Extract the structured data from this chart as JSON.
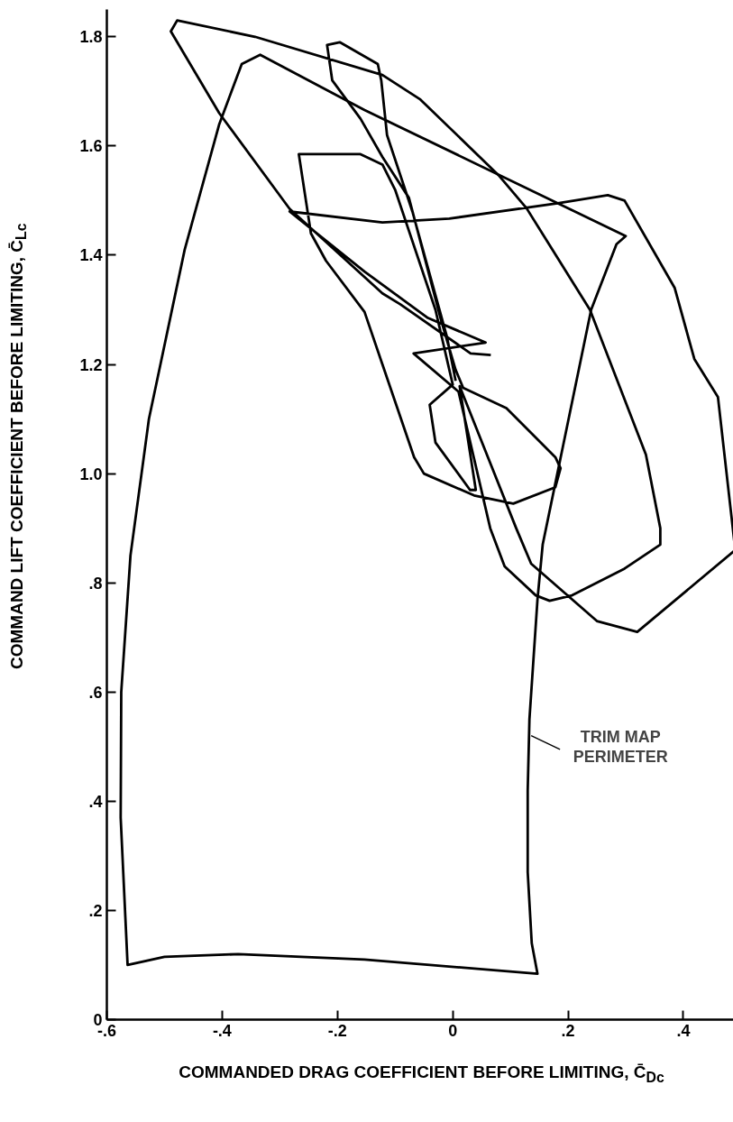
{
  "chart_data": {
    "type": "line",
    "xlabel": "COMMANDED DRAG COEFFICIENT BEFORE LIMITING, C̄$_{Dc}$",
    "ylabel": "COMMAND LIFT COEFFICIENT BEFORE LIMITING, C̄$_{Lc}$",
    "xlim": [
      -0.6,
      0.49
    ],
    "ylim": [
      0,
      1.85
    ],
    "xticks": [
      {
        "value": -0.6,
        "label": "-.6"
      },
      {
        "value": -0.4,
        "label": "-.4"
      },
      {
        "value": -0.2,
        "label": "-.2"
      },
      0,
      {
        "value": 0.2,
        "label": ".2"
      },
      {
        "value": 0.4,
        "label": ".4"
      }
    ],
    "yticks": [
      0,
      {
        "value": 0.2,
        "label": ".2"
      },
      {
        "value": 0.4,
        "label": ".4"
      },
      {
        "value": 0.6,
        "label": ".6"
      },
      {
        "value": 0.8,
        "label": ".8"
      },
      {
        "value": 1.0,
        "label": "1.0"
      },
      {
        "value": 1.2,
        "label": "1.2"
      },
      {
        "value": 1.4,
        "label": "1.4"
      },
      {
        "value": 1.6,
        "label": "1.6"
      },
      {
        "value": 1.8,
        "label": "1.8"
      }
    ],
    "marker": "none",
    "line_style": "solid",
    "annotations": [
      {
        "text": "TRIM MAP PERIMETER",
        "x": 0.136,
        "y": 0.52
      }
    ],
    "series": [
      {
        "color": "#000000",
        "x": [
          0.005,
          -0.01,
          -0.07,
          -0.114,
          -0.124,
          -0.13,
          -0.196,
          -0.218,
          -0.209,
          -0.16,
          -0.122,
          -0.076,
          -0.02,
          0.005,
          0.018,
          0.093,
          0.178,
          0.187,
          0.178,
          0.105,
          0.037,
          -0.05,
          -0.067,
          -0.122,
          -0.153,
          -0.22,
          -0.246,
          -0.267,
          -0.16,
          -0.122,
          -0.1,
          -0.03,
          0.0,
          -0.04,
          -0.03,
          0.03,
          0.04,
          0.012,
          0.11,
          0.136,
          0.25,
          0.32,
          0.49,
          0.46,
          0.419,
          0.385,
          0.298,
          0.269,
          0.182,
          -0.006,
          -0.122,
          -0.283,
          -0.153,
          -0.043,
          0.057,
          -0.068,
          0.01,
          0.065,
          0.09,
          0.144,
          0.168,
          0.207,
          0.298,
          0.36,
          0.36,
          0.335,
          0.238,
          0.128,
          0.079,
          -0.056,
          -0.122,
          -0.343,
          -0.478,
          -0.489,
          -0.405,
          -0.283,
          -0.122,
          -0.091,
          0.031,
          0.066
        ],
        "values": [
          1.17,
          1.25,
          1.48,
          1.62,
          1.72,
          1.75,
          1.79,
          1.785,
          1.72,
          1.65,
          1.58,
          1.505,
          1.28,
          1.19,
          1.157,
          1.12,
          1.03,
          1.01,
          0.975,
          0.945,
          0.96,
          1.0,
          1.03,
          1.2,
          1.296,
          1.39,
          1.44,
          1.585,
          1.585,
          1.566,
          1.52,
          1.3,
          1.163,
          1.126,
          1.057,
          0.97,
          0.97,
          1.16,
          0.9,
          0.835,
          0.73,
          0.71,
          0.86,
          1.14,
          1.21,
          1.34,
          1.5,
          1.51,
          1.495,
          1.467,
          1.46,
          1.48,
          1.37,
          1.285,
          1.24,
          1.22,
          1.15,
          0.9,
          0.83,
          0.777,
          0.767,
          0.777,
          0.826,
          0.87,
          0.9,
          1.035,
          1.3,
          1.486,
          1.547,
          1.685,
          1.73,
          1.8,
          1.83,
          1.81,
          1.66,
          1.485,
          1.33,
          1.31,
          1.22,
          1.217
        ]
      },
      {
        "color": "#000000",
        "x": [
          -0.564,
          -0.5,
          -0.372,
          -0.153,
          0.147,
          0.137,
          0.13,
          0.13,
          0.133,
          0.147,
          0.156,
          0.24,
          0.284,
          0.3,
          -0.153,
          -0.334,
          -0.366,
          -0.405,
          -0.465,
          -0.527,
          -0.559,
          -0.575,
          -0.576,
          -0.564,
          -0.53
        ],
        "values": [
          0.1,
          0.115,
          0.12,
          0.11,
          0.084,
          0.14,
          0.27,
          0.42,
          0.55,
          0.77,
          0.87,
          1.3,
          1.42,
          1.435,
          1.666,
          1.767,
          1.75,
          1.64,
          1.41,
          1.1,
          0.85,
          0.6,
          0.37,
          0.1,
          0.108
        ]
      }
    ]
  }
}
